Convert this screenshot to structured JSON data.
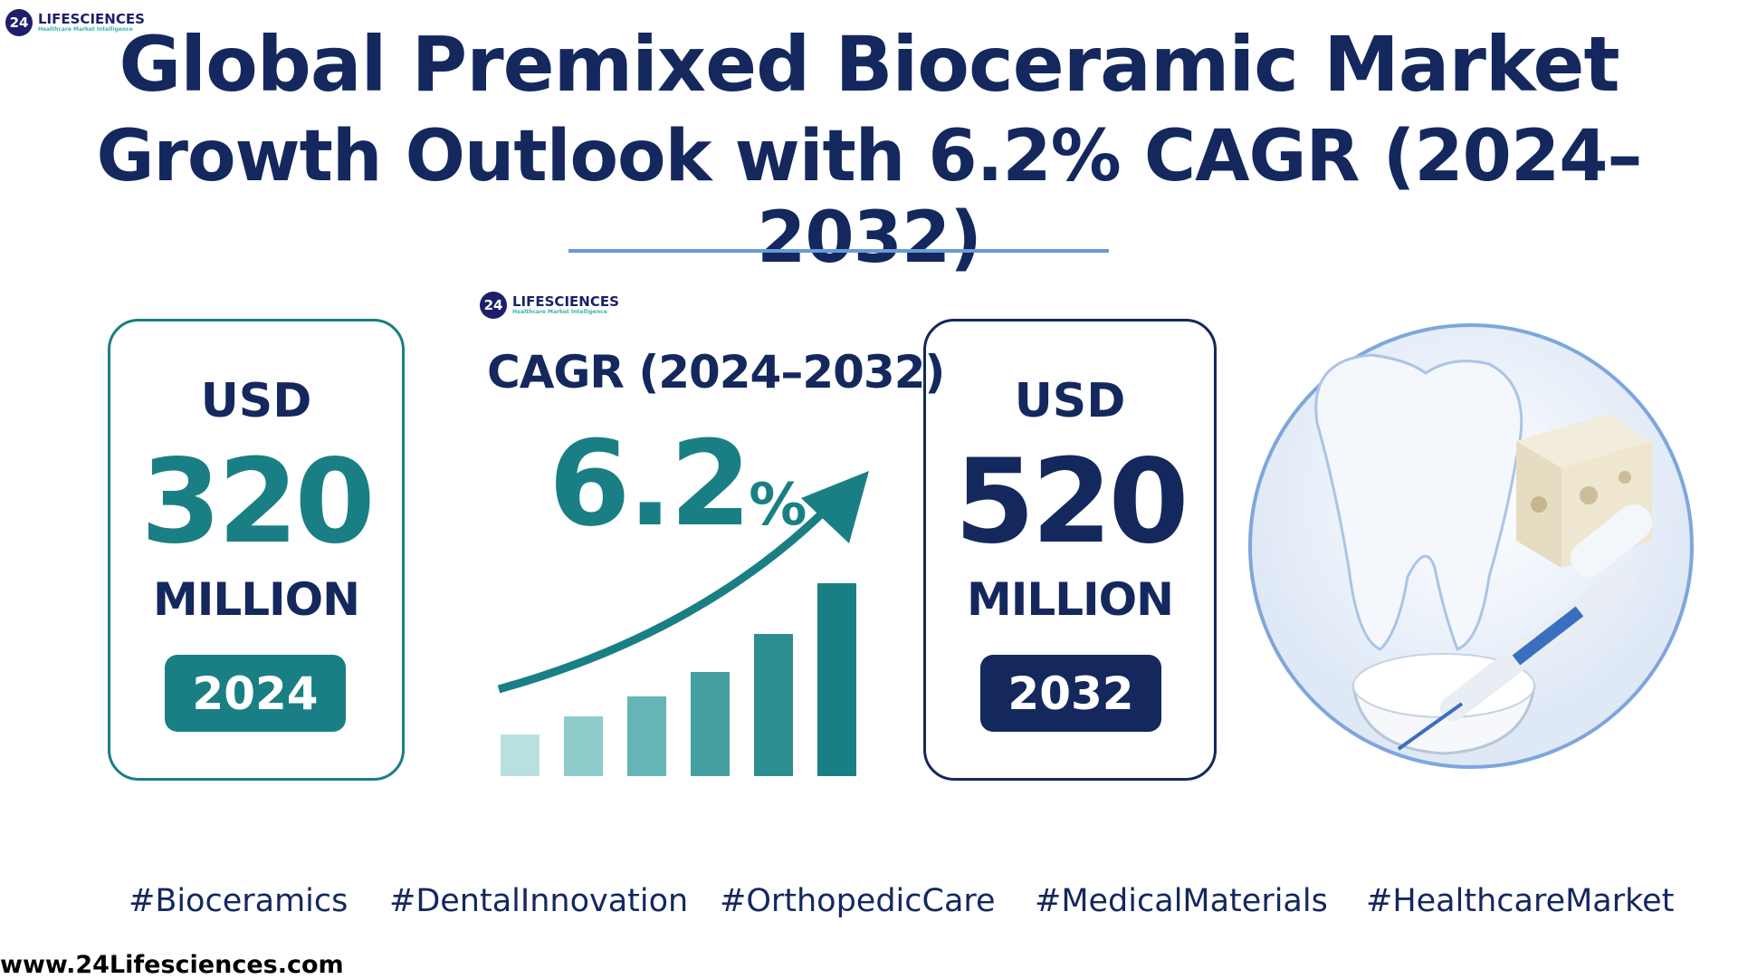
{
  "logo": {
    "badge": "24",
    "name": "LIFESCIENCES",
    "tagline": "Healthcare Market Intelligence"
  },
  "title": {
    "line1": "Global Premixed Bioceramic Market",
    "line2": "Growth Outlook with 6.2% CAGR (2024–2032)"
  },
  "start": {
    "currency": "USD",
    "value": "320",
    "unit": "MILLION",
    "year": "2024"
  },
  "cagr": {
    "label": "CAGR (2024–2032)",
    "value": "6.2",
    "percent": "%"
  },
  "end": {
    "currency": "USD",
    "value": "520",
    "unit": "MILLION",
    "year": "2032"
  },
  "hashtags": [
    "#Bioceramics",
    "#DentalInnovation",
    "#OrthopedicCare",
    "#MedicalMaterials",
    "#HealthcareMarket"
  ],
  "website": "www.24Lifesciences.com",
  "colors": {
    "teal": "#1a7f84",
    "navy": "#14285e",
    "accent_line": "#6a9ad8"
  },
  "icons": [
    "tooth-icon",
    "bone-block-icon",
    "syringe-icon",
    "powder-bowl-icon",
    "growth-arrow-icon"
  ]
}
